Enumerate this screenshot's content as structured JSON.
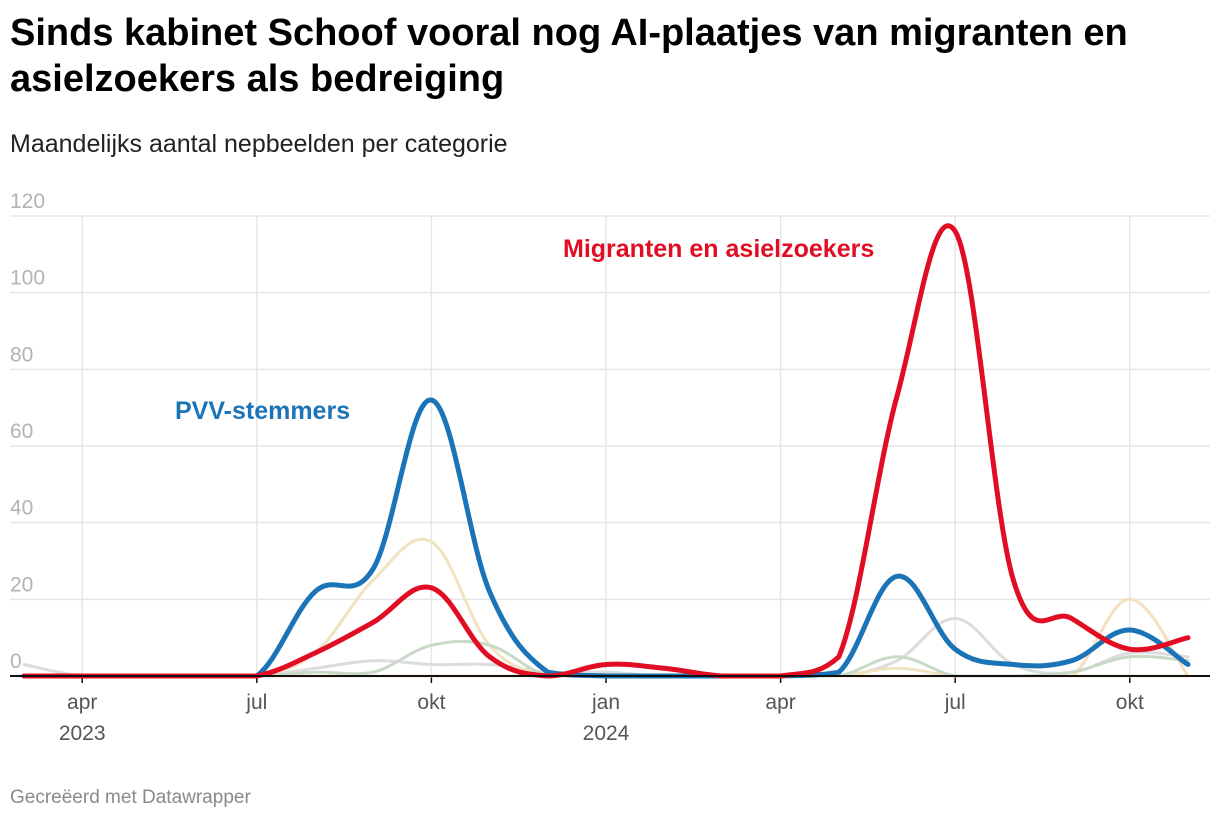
{
  "title": "Sinds kabinet Schoof vooral nog AI-plaatjes van migranten en asielzoekers als bedreiging",
  "subtitle": "Maandelijks aantal nepbeelden per categorie",
  "footer": "Gecreëerd met Datawrapper",
  "chart_data": {
    "type": "line",
    "xlabel": "",
    "ylabel": "",
    "ylim": [
      0,
      120
    ],
    "yticks": [
      0,
      20,
      40,
      60,
      80,
      100,
      120
    ],
    "grid": true,
    "x": [
      "2023-03",
      "2023-04",
      "2023-05",
      "2023-06",
      "2023-07",
      "2023-08",
      "2023-09",
      "2023-10",
      "2023-11",
      "2023-12",
      "2024-01",
      "2024-02",
      "2024-03",
      "2024-04",
      "2024-05",
      "2024-06",
      "2024-07",
      "2024-08",
      "2024-09",
      "2024-10",
      "2024-11"
    ],
    "x_ticks": [
      {
        "date": "2023-04",
        "label": "apr",
        "year": "2023"
      },
      {
        "date": "2023-07",
        "label": "jul",
        "year": ""
      },
      {
        "date": "2023-10",
        "label": "okt",
        "year": ""
      },
      {
        "date": "2024-01",
        "label": "jan",
        "year": "2024"
      },
      {
        "date": "2024-04",
        "label": "apr",
        "year": ""
      },
      {
        "date": "2024-07",
        "label": "jul",
        "year": ""
      },
      {
        "date": "2024-10",
        "label": "okt",
        "year": ""
      }
    ],
    "series": [
      {
        "key": "grey",
        "color": "#dcdcdc",
        "values": [
          3,
          0,
          0,
          0,
          0,
          2,
          4,
          3,
          3,
          1,
          1,
          0,
          0,
          0,
          0,
          4,
          15,
          3,
          1,
          6,
          5
        ]
      },
      {
        "key": "tan",
        "color": "#efe3c0",
        "values": [
          0,
          0,
          0,
          0,
          0,
          6,
          25,
          35,
          8,
          0,
          0,
          0,
          0,
          0,
          0,
          2,
          0,
          0,
          0,
          0,
          0
        ]
      },
      {
        "key": "peach",
        "color": "#f6dfc0",
        "values": [
          0,
          0,
          0,
          0,
          0,
          0,
          0,
          0,
          0,
          0,
          0,
          0,
          0,
          0,
          0,
          0,
          0,
          0,
          0,
          20,
          0
        ]
      },
      {
        "key": "green",
        "color": "#c9d9c7",
        "values": [
          0,
          0,
          0,
          0,
          0,
          1,
          1,
          8,
          8,
          0,
          0,
          0,
          0,
          0,
          0,
          5,
          0,
          0,
          1,
          5,
          4
        ]
      },
      {
        "key": "pvv",
        "name": "PVV-stemmers",
        "color": "#1b74b7",
        "values": [
          0,
          0,
          0,
          0,
          0,
          22,
          28,
          72,
          22,
          1,
          0,
          0,
          0,
          0,
          1,
          26,
          7,
          3,
          4,
          12,
          3
        ]
      },
      {
        "key": "migr",
        "name": "Migranten en asielzoekers",
        "color": "#e10e23",
        "values": [
          0,
          0,
          0,
          0,
          0,
          6,
          14,
          23,
          5,
          0,
          3,
          2,
          0,
          0,
          5,
          73,
          116,
          25,
          15,
          7,
          10
        ]
      }
    ]
  }
}
